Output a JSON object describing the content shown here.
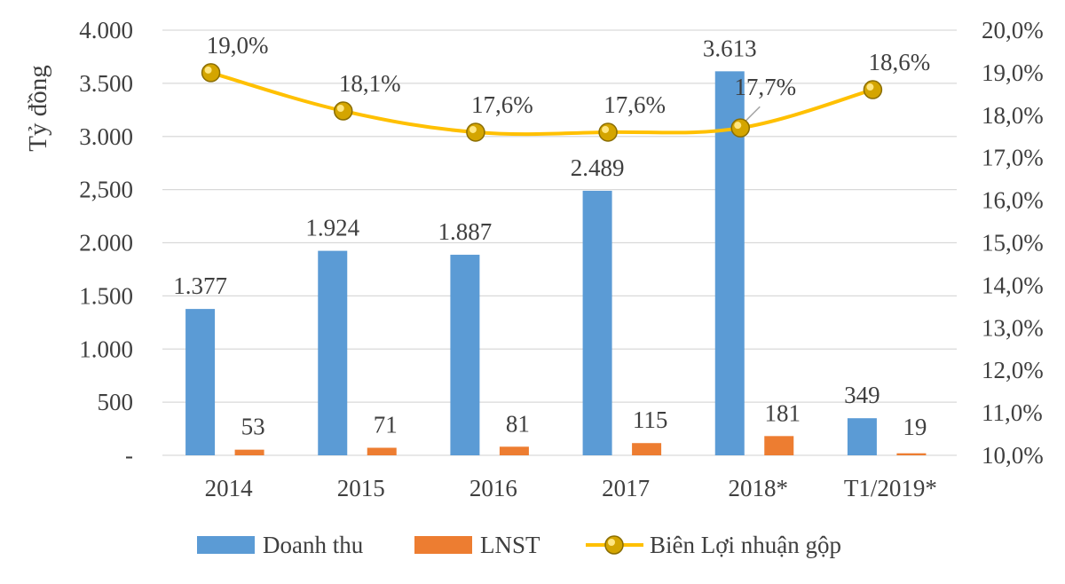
{
  "colors": {
    "revenue": "#5b9bd5",
    "lnst": "#ed7d31",
    "margin_line": "#ffc000",
    "grid": "#d9d9d9",
    "text": "#3f3f3f"
  },
  "chart_data": {
    "type": "bar",
    "title": "",
    "ylabel": "Tỷ đồng",
    "y2label": "",
    "categories": [
      "2014",
      "2015",
      "2016",
      "2017",
      "2018*",
      "T1/2019*"
    ],
    "ylim": [
      0,
      4000
    ],
    "y_ticks": [
      0,
      500,
      1000,
      1500,
      2000,
      2500,
      3000,
      3500,
      4000
    ],
    "y_tick_labels": [
      "-",
      "500",
      "1.000",
      "1.500",
      "2.000",
      "2,500",
      "3.000",
      "3.500",
      "4.000"
    ],
    "y2lim": [
      10.0,
      20.0
    ],
    "y2_ticks": [
      10,
      11,
      12,
      13,
      14,
      15,
      16,
      17,
      18,
      19,
      20
    ],
    "y2_tick_labels": [
      "10,0%",
      "11,0%",
      "12,0%",
      "13,0%",
      "14,0%",
      "15,0%",
      "16,0%",
      "17,0%",
      "18,0%",
      "19,0%",
      "20,0%"
    ],
    "grid": true,
    "legend_position": "bottom",
    "series": [
      {
        "name": "Doanh thu",
        "kind": "bar",
        "axis": "left",
        "values": [
          1377,
          1924,
          1887,
          2489,
          3613,
          349
        ],
        "labels": [
          "1.377",
          "1.924",
          "1.887",
          "2.489",
          "3.613",
          "349"
        ]
      },
      {
        "name": "LNST",
        "kind": "bar",
        "axis": "left",
        "values": [
          53,
          71,
          81,
          115,
          181,
          19
        ],
        "labels": [
          "53",
          "71",
          "81",
          "115",
          "181",
          "19"
        ]
      },
      {
        "name": "Biên Lợi nhuận gộp",
        "kind": "line",
        "axis": "right",
        "values": [
          19.0,
          18.1,
          17.6,
          17.6,
          17.7,
          18.6
        ],
        "labels": [
          "19,0%",
          "18,1%",
          "17,6%",
          "17,6%",
          "17,7%",
          "18,6%"
        ]
      }
    ]
  }
}
